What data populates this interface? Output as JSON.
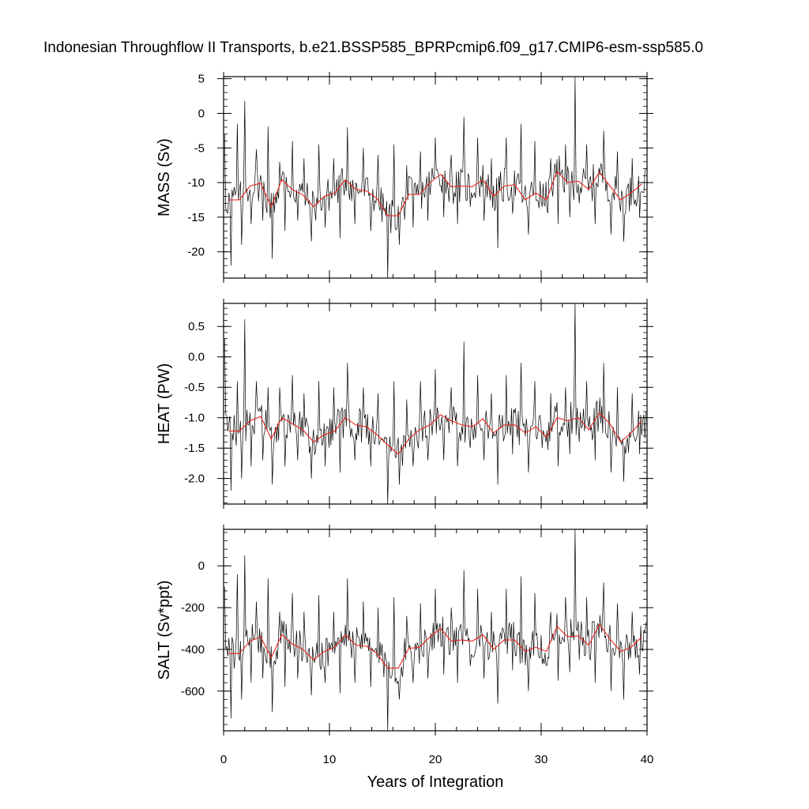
{
  "figure": {
    "title": "Indonesian Throughflow II Transports, b.e21.BSSP585_BPRPcmip6.f09_g17.CMIP6-esm-ssp585.0",
    "xlabel": "Years of Integration"
  },
  "colors": {
    "monthly": "#000000",
    "annual": "#e8231e",
    "axes": "#000000"
  },
  "chart_data": [
    {
      "type": "line",
      "panel": "mass",
      "ylabel": "MASS (Sv)",
      "xlim": [
        0,
        40
      ],
      "ylim": [
        -23.8,
        5.3
      ],
      "xticks": [
        0,
        10,
        20,
        30,
        40
      ],
      "yticks": [
        5,
        0,
        -5,
        -10,
        -15,
        -20
      ],
      "ytick_labels": [
        "5",
        "0",
        "-5",
        "-10",
        "-15",
        "-20"
      ],
      "grid": false,
      "monthly_peaks": [
        [
          0.1,
          -3.0
        ],
        [
          0.7,
          -22.0
        ],
        [
          1.3,
          -1.5
        ],
        [
          1.7,
          -19.0
        ],
        [
          2.0,
          1.8
        ],
        [
          2.6,
          -16.0
        ],
        [
          3.1,
          -5.2
        ],
        [
          3.7,
          -15.5
        ],
        [
          4.2,
          -1.9
        ],
        [
          4.6,
          -21.0
        ],
        [
          5.3,
          -7.0
        ],
        [
          5.8,
          -17.0
        ],
        [
          6.5,
          -4.0
        ],
        [
          7.0,
          -15.5
        ],
        [
          7.6,
          -6.5
        ],
        [
          8.3,
          -18.5
        ],
        [
          9.0,
          -4.5
        ],
        [
          9.6,
          -16.5
        ],
        [
          10.4,
          -6.5
        ],
        [
          11.0,
          -18.0
        ],
        [
          11.7,
          -2.0
        ],
        [
          12.4,
          -16.0
        ],
        [
          13.2,
          -5.0
        ],
        [
          13.9,
          -17.0
        ],
        [
          14.6,
          -6.0
        ],
        [
          15.5,
          -23.8
        ],
        [
          16.1,
          -4.5
        ],
        [
          16.6,
          -19.0
        ],
        [
          17.3,
          -7.5
        ],
        [
          17.9,
          -16.5
        ],
        [
          18.6,
          -5.5
        ],
        [
          19.3,
          -15.5
        ],
        [
          20.0,
          -3.5
        ],
        [
          20.8,
          -15.0
        ],
        [
          21.5,
          -6.0
        ],
        [
          22.1,
          -16.0
        ],
        [
          22.7,
          -0.5
        ],
        [
          23.3,
          -13.5
        ],
        [
          24.0,
          -3.5
        ],
        [
          24.6,
          -15.5
        ],
        [
          25.3,
          -6.5
        ],
        [
          25.9,
          -19.5
        ],
        [
          26.7,
          -3.5
        ],
        [
          27.3,
          -14.5
        ],
        [
          28.1,
          -1.5
        ],
        [
          28.8,
          -17.5
        ],
        [
          29.4,
          -4.0
        ],
        [
          30.1,
          -13.5
        ],
        [
          30.9,
          -6.5
        ],
        [
          31.6,
          -16.0
        ],
        [
          32.3,
          -4.5
        ],
        [
          32.7,
          -15.0
        ],
        [
          33.2,
          5.3
        ],
        [
          33.6,
          -13.0
        ],
        [
          34.3,
          -4.5
        ],
        [
          35.1,
          -16.0
        ],
        [
          35.9,
          -2.5
        ],
        [
          36.6,
          -17.5
        ],
        [
          37.2,
          -5.5
        ],
        [
          37.8,
          -18.5
        ],
        [
          38.6,
          -6.5
        ],
        [
          39.3,
          -15.0
        ],
        [
          39.9,
          -8.0
        ]
      ],
      "annual_mean": [
        [
          0.5,
          -12.5
        ],
        [
          1.5,
          -12.5
        ],
        [
          2.5,
          -10.5
        ],
        [
          3.5,
          -10.1
        ],
        [
          4.5,
          -13.5
        ],
        [
          5.5,
          -9.6
        ],
        [
          6.5,
          -11.0
        ],
        [
          7.5,
          -11.8
        ],
        [
          8.5,
          -13.5
        ],
        [
          9.5,
          -12.0
        ],
        [
          10.5,
          -11.5
        ],
        [
          11.5,
          -9.6
        ],
        [
          12.5,
          -11.0
        ],
        [
          13.5,
          -11.2
        ],
        [
          14.5,
          -12.3
        ],
        [
          15.5,
          -14.8
        ],
        [
          16.5,
          -14.8
        ],
        [
          17.5,
          -11.7
        ],
        [
          18.5,
          -11.7
        ],
        [
          19.5,
          -10.0
        ],
        [
          20.5,
          -8.8
        ],
        [
          21.5,
          -10.6
        ],
        [
          22.5,
          -10.5
        ],
        [
          23.5,
          -10.6
        ],
        [
          24.5,
          -9.6
        ],
        [
          25.5,
          -12.0
        ],
        [
          26.5,
          -10.5
        ],
        [
          27.5,
          -10.3
        ],
        [
          28.5,
          -12.5
        ],
        [
          29.5,
          -11.5
        ],
        [
          30.5,
          -12.5
        ],
        [
          31.5,
          -8.4
        ],
        [
          32.5,
          -10.0
        ],
        [
          33.5,
          -9.8
        ],
        [
          34.5,
          -11.0
        ],
        [
          35.5,
          -8.5
        ],
        [
          36.5,
          -10.5
        ],
        [
          37.5,
          -12.5
        ],
        [
          38.5,
          -11.5
        ],
        [
          39.5,
          -10.2
        ]
      ]
    },
    {
      "type": "line",
      "panel": "heat",
      "ylabel": "HEAT (PW)",
      "xlim": [
        0,
        40
      ],
      "ylim": [
        -2.42,
        0.88
      ],
      "xticks": [
        0,
        10,
        20,
        30,
        40
      ],
      "yticks": [
        0.5,
        0.0,
        -0.5,
        -1.0,
        -1.5,
        -2.0
      ],
      "ytick_labels": [
        "0.5",
        "0.0",
        "-0.5",
        "-1.0",
        "-1.5",
        "-2.0"
      ],
      "grid": false,
      "monthly_peaks": [
        [
          0.1,
          0.3
        ],
        [
          0.7,
          -2.2
        ],
        [
          1.3,
          -0.4
        ],
        [
          1.7,
          -2.0
        ],
        [
          2.0,
          0.62
        ],
        [
          2.6,
          -1.8
        ],
        [
          3.1,
          -0.4
        ],
        [
          3.7,
          -1.7
        ],
        [
          4.2,
          -0.5
        ],
        [
          4.6,
          -2.1
        ],
        [
          5.3,
          -0.5
        ],
        [
          5.8,
          -1.8
        ],
        [
          6.5,
          -0.3
        ],
        [
          7.0,
          -1.7
        ],
        [
          7.6,
          -0.6
        ],
        [
          8.3,
          -2.0
        ],
        [
          9.0,
          -0.4
        ],
        [
          9.6,
          -1.8
        ],
        [
          10.4,
          -0.5
        ],
        [
          11.0,
          -1.9
        ],
        [
          11.7,
          -0.1
        ],
        [
          12.4,
          -1.7
        ],
        [
          13.2,
          -0.5
        ],
        [
          13.9,
          -1.8
        ],
        [
          14.6,
          -0.6
        ],
        [
          15.5,
          -2.42
        ],
        [
          16.1,
          -0.4
        ],
        [
          16.6,
          -2.1
        ],
        [
          17.3,
          -0.7
        ],
        [
          17.9,
          -1.8
        ],
        [
          18.6,
          -0.4
        ],
        [
          19.3,
          -1.7
        ],
        [
          20.0,
          -0.2
        ],
        [
          20.8,
          -1.7
        ],
        [
          21.5,
          -0.5
        ],
        [
          22.1,
          -1.8
        ],
        [
          22.7,
          0.25
        ],
        [
          23.3,
          -1.5
        ],
        [
          24.0,
          -0.3
        ],
        [
          24.6,
          -1.7
        ],
        [
          25.3,
          -0.6
        ],
        [
          25.9,
          -2.1
        ],
        [
          26.7,
          -0.3
        ],
        [
          27.3,
          -1.6
        ],
        [
          28.1,
          -0.1
        ],
        [
          28.8,
          -1.9
        ],
        [
          29.4,
          -0.4
        ],
        [
          30.1,
          -1.5
        ],
        [
          30.9,
          -0.6
        ],
        [
          31.6,
          -1.8
        ],
        [
          32.3,
          -0.5
        ],
        [
          32.7,
          -1.6
        ],
        [
          33.2,
          0.88
        ],
        [
          33.6,
          -1.4
        ],
        [
          34.3,
          -0.4
        ],
        [
          35.1,
          -1.7
        ],
        [
          35.9,
          -0.1
        ],
        [
          36.6,
          -1.9
        ],
        [
          37.2,
          -0.5
        ],
        [
          37.8,
          -2.05
        ],
        [
          38.6,
          -0.6
        ],
        [
          39.3,
          -1.6
        ],
        [
          39.9,
          -0.9
        ]
      ],
      "annual_mean": [
        [
          0.5,
          -1.22
        ],
        [
          1.5,
          -1.22
        ],
        [
          2.5,
          -1.05
        ],
        [
          3.5,
          -0.98
        ],
        [
          4.5,
          -1.35
        ],
        [
          5.5,
          -1.0
        ],
        [
          6.5,
          -1.1
        ],
        [
          7.5,
          -1.2
        ],
        [
          8.5,
          -1.4
        ],
        [
          9.5,
          -1.28
        ],
        [
          10.5,
          -1.22
        ],
        [
          11.5,
          -1.0
        ],
        [
          12.5,
          -1.12
        ],
        [
          13.5,
          -1.15
        ],
        [
          14.5,
          -1.28
        ],
        [
          15.5,
          -1.45
        ],
        [
          16.5,
          -1.6
        ],
        [
          17.5,
          -1.35
        ],
        [
          18.5,
          -1.2
        ],
        [
          19.5,
          -1.12
        ],
        [
          20.5,
          -0.95
        ],
        [
          21.5,
          -1.05
        ],
        [
          22.5,
          -1.12
        ],
        [
          23.5,
          -1.15
        ],
        [
          24.5,
          -1.02
        ],
        [
          25.5,
          -1.25
        ],
        [
          26.5,
          -1.12
        ],
        [
          27.5,
          -1.12
        ],
        [
          28.5,
          -1.25
        ],
        [
          29.5,
          -1.15
        ],
        [
          30.5,
          -1.32
        ],
        [
          31.5,
          -1.0
        ],
        [
          32.5,
          -1.05
        ],
        [
          33.5,
          -1.0
        ],
        [
          34.5,
          -1.2
        ],
        [
          35.5,
          -0.92
        ],
        [
          36.5,
          -1.1
        ],
        [
          37.5,
          -1.4
        ],
        [
          38.5,
          -1.25
        ],
        [
          39.5,
          -1.05
        ]
      ]
    },
    {
      "type": "line",
      "panel": "salt",
      "ylabel": "SALT (Sv*ppt)",
      "xlim": [
        0,
        40
      ],
      "ylim": [
        -790,
        175
      ],
      "xticks": [
        0,
        10,
        20,
        30,
        40
      ],
      "yticks": [
        0,
        -200,
        -400,
        -600
      ],
      "ytick_labels": [
        "0",
        "-200",
        "-400",
        "-600"
      ],
      "grid": false,
      "monthly_peaks": [
        [
          0.1,
          -100
        ],
        [
          0.7,
          -730
        ],
        [
          1.3,
          -40
        ],
        [
          1.7,
          -640
        ],
        [
          2.0,
          50
        ],
        [
          2.6,
          -560
        ],
        [
          3.1,
          -170
        ],
        [
          3.7,
          -540
        ],
        [
          4.2,
          -60
        ],
        [
          4.6,
          -700
        ],
        [
          5.3,
          -220
        ],
        [
          5.8,
          -580
        ],
        [
          6.5,
          -130
        ],
        [
          7.0,
          -540
        ],
        [
          7.6,
          -220
        ],
        [
          8.3,
          -620
        ],
        [
          9.0,
          -140
        ],
        [
          9.6,
          -560
        ],
        [
          10.4,
          -220
        ],
        [
          11.0,
          -610
        ],
        [
          11.7,
          -60
        ],
        [
          12.4,
          -560
        ],
        [
          13.2,
          -170
        ],
        [
          13.9,
          -580
        ],
        [
          14.6,
          -200
        ],
        [
          15.5,
          -790
        ],
        [
          16.1,
          -150
        ],
        [
          16.6,
          -640
        ],
        [
          17.3,
          -240
        ],
        [
          17.9,
          -560
        ],
        [
          18.6,
          -180
        ],
        [
          19.3,
          -540
        ],
        [
          20.0,
          -110
        ],
        [
          20.8,
          -520
        ],
        [
          21.5,
          -200
        ],
        [
          22.1,
          -560
        ],
        [
          22.7,
          -20
        ],
        [
          23.3,
          -480
        ],
        [
          24.0,
          -110
        ],
        [
          24.6,
          -540
        ],
        [
          25.3,
          -220
        ],
        [
          25.9,
          -660
        ],
        [
          26.7,
          -110
        ],
        [
          27.3,
          -500
        ],
        [
          28.1,
          -50
        ],
        [
          28.8,
          -600
        ],
        [
          29.4,
          -130
        ],
        [
          30.1,
          -470
        ],
        [
          30.9,
          -220
        ],
        [
          31.6,
          -550
        ],
        [
          32.3,
          -150
        ],
        [
          32.7,
          -510
        ],
        [
          33.2,
          175
        ],
        [
          33.6,
          -450
        ],
        [
          34.3,
          -150
        ],
        [
          35.1,
          -560
        ],
        [
          35.9,
          -80
        ],
        [
          36.6,
          -600
        ],
        [
          37.2,
          -180
        ],
        [
          37.8,
          -640
        ],
        [
          38.6,
          -220
        ],
        [
          39.3,
          -520
        ],
        [
          39.9,
          -270
        ]
      ],
      "annual_mean": [
        [
          0.5,
          -420
        ],
        [
          1.5,
          -420
        ],
        [
          2.5,
          -360
        ],
        [
          3.5,
          -340
        ],
        [
          4.5,
          -440
        ],
        [
          5.5,
          -330
        ],
        [
          6.5,
          -375
        ],
        [
          7.5,
          -400
        ],
        [
          8.5,
          -450
        ],
        [
          9.5,
          -410
        ],
        [
          10.5,
          -390
        ],
        [
          11.5,
          -330
        ],
        [
          12.5,
          -380
        ],
        [
          13.5,
          -385
        ],
        [
          14.5,
          -420
        ],
        [
          15.5,
          -490
        ],
        [
          16.5,
          -490
        ],
        [
          17.5,
          -395
        ],
        [
          18.5,
          -390
        ],
        [
          19.5,
          -340
        ],
        [
          20.5,
          -300
        ],
        [
          21.5,
          -360
        ],
        [
          22.5,
          -355
        ],
        [
          23.5,
          -360
        ],
        [
          24.5,
          -330
        ],
        [
          25.5,
          -400
        ],
        [
          26.5,
          -355
        ],
        [
          27.5,
          -355
        ],
        [
          28.5,
          -410
        ],
        [
          29.5,
          -390
        ],
        [
          30.5,
          -410
        ],
        [
          31.5,
          -290
        ],
        [
          32.5,
          -340
        ],
        [
          33.5,
          -335
        ],
        [
          34.5,
          -380
        ],
        [
          35.5,
          -280
        ],
        [
          36.5,
          -350
        ],
        [
          37.5,
          -410
        ],
        [
          38.5,
          -390
        ],
        [
          39.5,
          -340
        ]
      ]
    }
  ]
}
